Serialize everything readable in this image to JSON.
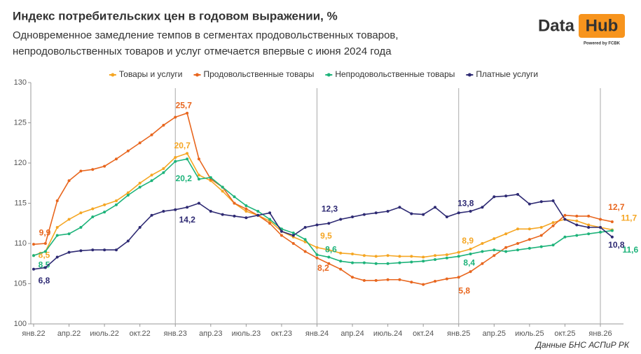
{
  "chart_data": {
    "type": "line",
    "title": "Индекс потребительских цен в годовом выражении, %",
    "subtitle": [
      "Одновременное замедление темпов в сегментах продовольственных товаров,",
      "непродовольственных товаров и услуг отмечается впервые с июня 2024 года"
    ],
    "logo": {
      "left": "Data",
      "right": "Hub",
      "tagline": "Powered by FCBK"
    },
    "source": "Данные БНС АСПиР РК",
    "categories": [
      "янв.22",
      null,
      null,
      "апр.22",
      null,
      null,
      "июль.22",
      null,
      null,
      "окт.22",
      null,
      null,
      "янв.23",
      null,
      null,
      "апр.23",
      null,
      null,
      "июль.23",
      null,
      null,
      "окт.23",
      null,
      null,
      "янв.24",
      null,
      null,
      "апр.24",
      null,
      null,
      "июль.24",
      null,
      null,
      "окт.24",
      null,
      null,
      "янв.25",
      null,
      null,
      "апр.25",
      null,
      null,
      "июль.25",
      null,
      null,
      "окт.25",
      null,
      null,
      "янв.26",
      null
    ],
    "ylim": [
      100,
      130
    ],
    "yticks": [
      100,
      105,
      110,
      115,
      120,
      125,
      130
    ],
    "grid": false,
    "series": [
      {
        "name": "Товары и услуги",
        "color": "#f5a623",
        "values": [
          108.5,
          109.0,
          112.0,
          113.0,
          113.8,
          114.3,
          114.8,
          115.3,
          116.3,
          117.5,
          118.5,
          119.3,
          120.7,
          121.2,
          118.5,
          117.8,
          116.5,
          115.0,
          114.0,
          113.5,
          112.8,
          111.5,
          110.8,
          110.2,
          109.5,
          109.2,
          108.8,
          108.7,
          108.5,
          108.4,
          108.5,
          108.4,
          108.4,
          108.3,
          108.5,
          108.6,
          108.9,
          109.3,
          110.0,
          110.6,
          111.2,
          111.8,
          111.8,
          112.0,
          112.6,
          113.0,
          112.8,
          112.3,
          112.0,
          111.7
        ],
        "value_labels": [
          "8,5",
          null,
          null,
          null,
          null,
          null,
          null,
          null,
          null,
          null,
          null,
          null,
          "20,7",
          null,
          null,
          null,
          null,
          null,
          null,
          null,
          null,
          null,
          null,
          null,
          "9,5",
          null,
          null,
          null,
          null,
          null,
          null,
          null,
          null,
          null,
          null,
          null,
          "8,9",
          null,
          null,
          null,
          null,
          null,
          null,
          null,
          null,
          null,
          null,
          null,
          null,
          "11,7"
        ]
      },
      {
        "name": "Продовольственные товары",
        "color": "#e8661e",
        "values": [
          109.9,
          110.0,
          115.3,
          117.8,
          119.0,
          119.2,
          119.6,
          120.5,
          121.5,
          122.5,
          123.5,
          124.7,
          125.7,
          126.2,
          120.5,
          118.0,
          117.0,
          115.0,
          114.3,
          113.5,
          112.5,
          111.0,
          110.0,
          109.0,
          108.2,
          107.5,
          106.8,
          105.8,
          105.4,
          105.4,
          105.5,
          105.5,
          105.2,
          104.9,
          105.3,
          105.6,
          105.8,
          106.5,
          107.5,
          108.5,
          109.5,
          110.0,
          110.5,
          111.0,
          112.2,
          113.5,
          113.4,
          113.4,
          113.0,
          112.7
        ],
        "value_labels": [
          "9,9",
          null,
          null,
          null,
          null,
          null,
          null,
          null,
          null,
          null,
          null,
          null,
          "25,7",
          null,
          null,
          null,
          null,
          null,
          null,
          null,
          null,
          null,
          null,
          null,
          "8,2",
          null,
          null,
          null,
          null,
          null,
          null,
          null,
          null,
          null,
          null,
          null,
          "5,8",
          null,
          null,
          null,
          null,
          null,
          null,
          null,
          null,
          null,
          null,
          null,
          null,
          "12,7"
        ]
      },
      {
        "name": "Непродовольственные товары",
        "color": "#1db37a",
        "values": [
          108.5,
          109.0,
          111.0,
          111.2,
          112.0,
          113.3,
          113.9,
          114.8,
          116.0,
          117.0,
          117.8,
          118.8,
          120.2,
          120.5,
          118.0,
          118.2,
          117.0,
          115.8,
          114.7,
          114.0,
          113.0,
          111.8,
          111.3,
          110.5,
          108.6,
          108.3,
          107.8,
          107.6,
          107.6,
          107.5,
          107.5,
          107.6,
          107.7,
          107.8,
          108.0,
          108.2,
          108.4,
          108.7,
          109.0,
          109.2,
          109.0,
          109.2,
          109.4,
          109.6,
          109.8,
          110.8,
          111.0,
          111.2,
          111.4,
          111.6
        ],
        "value_labels": [
          "8,5",
          null,
          null,
          null,
          null,
          null,
          null,
          null,
          null,
          null,
          null,
          null,
          "20,2",
          null,
          null,
          null,
          null,
          null,
          null,
          null,
          null,
          null,
          null,
          null,
          "8,6",
          null,
          null,
          null,
          null,
          null,
          null,
          null,
          null,
          null,
          null,
          null,
          "8,4",
          null,
          null,
          null,
          null,
          null,
          null,
          null,
          null,
          null,
          null,
          null,
          null,
          "11,6"
        ]
      },
      {
        "name": "Платные услуги",
        "color": "#2e2a73",
        "values": [
          106.8,
          107.0,
          108.3,
          108.9,
          109.1,
          109.2,
          109.2,
          109.2,
          110.3,
          112.0,
          113.5,
          114.0,
          114.2,
          114.5,
          115.0,
          114.0,
          113.6,
          113.4,
          113.2,
          113.5,
          113.8,
          111.5,
          111.0,
          112.0,
          112.3,
          112.5,
          113.0,
          113.3,
          113.6,
          113.8,
          114.0,
          114.5,
          113.7,
          113.6,
          114.5,
          113.3,
          113.8,
          114.0,
          114.5,
          115.8,
          115.9,
          116.1,
          114.9,
          115.2,
          115.3,
          113.0,
          112.3,
          112.0,
          112.0,
          110.8
        ],
        "value_labels": [
          "6,8",
          null,
          null,
          null,
          null,
          null,
          null,
          null,
          null,
          null,
          null,
          null,
          "14,2",
          null,
          null,
          null,
          null,
          null,
          null,
          null,
          null,
          null,
          null,
          null,
          "12,3",
          null,
          null,
          null,
          null,
          null,
          null,
          null,
          null,
          null,
          null,
          null,
          "13,8",
          null,
          null,
          null,
          null,
          null,
          null,
          null,
          null,
          null,
          null,
          null,
          null,
          "10,8"
        ]
      }
    ]
  }
}
